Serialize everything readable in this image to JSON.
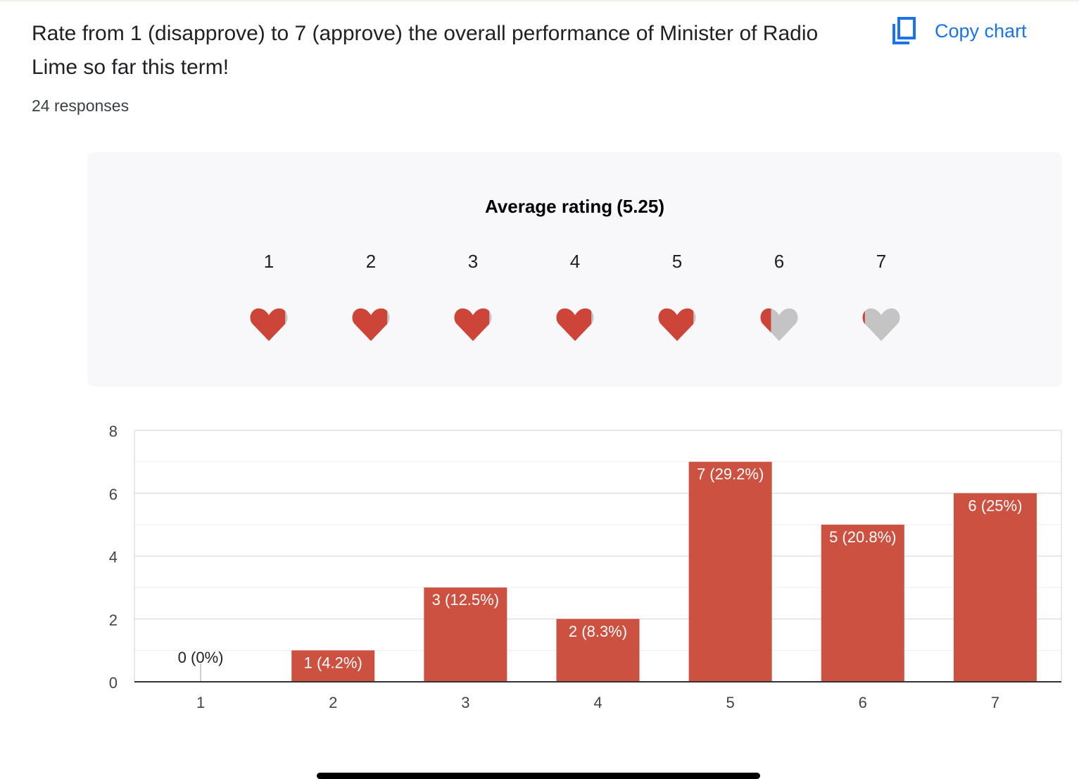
{
  "question": "Rate from 1 (disapprove) to 7 (approve) the overall performance of Minister of Radio Lime so far this term!",
  "responses_text": "24 responses",
  "copy_label": "Copy chart",
  "icons": {
    "copy": "copy-icon",
    "heart": "heart-icon"
  },
  "colors": {
    "accent": "#1a73e8",
    "bar": "#cc5140",
    "heart_filled": "#cc4538",
    "heart_empty": "#c4c4c4"
  },
  "rating": {
    "title": "Average rating",
    "average": "(5.25)",
    "average_value": 5.25,
    "scale": [
      "1",
      "2",
      "3",
      "4",
      "5",
      "6",
      "7"
    ]
  },
  "chart_data": {
    "type": "bar",
    "categories": [
      "1",
      "2",
      "3",
      "4",
      "5",
      "6",
      "7"
    ],
    "values": [
      0,
      1,
      3,
      2,
      7,
      5,
      6
    ],
    "labels": [
      "0 (0%)",
      "1 (4.2%)",
      "3 (12.5%)",
      "2 (8.3%)",
      "7 (29.2%)",
      "5 (20.8%)",
      "6 (25%)"
    ],
    "yticks": [
      "0",
      "2",
      "4",
      "6",
      "8"
    ],
    "ylim": [
      0,
      8
    ],
    "grid": true,
    "title": "",
    "xlabel": "",
    "ylabel": ""
  }
}
